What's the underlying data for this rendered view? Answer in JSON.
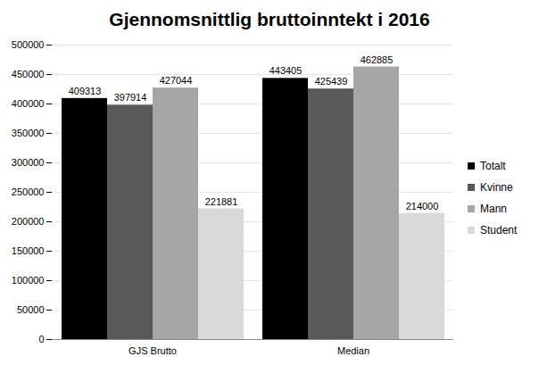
{
  "chart_data": {
    "type": "bar",
    "title": "Gjennomsnittlig bruttoinntekt i 2016",
    "categories": [
      "GJS Brutto",
      "Median"
    ],
    "series": [
      {
        "name": "Totalt",
        "color": "#000000",
        "values": [
          409313,
          443405
        ]
      },
      {
        "name": "Kvinne",
        "color": "#595959",
        "values": [
          397914,
          425439
        ]
      },
      {
        "name": "Mann",
        "color": "#a6a6a6",
        "values": [
          427044,
          462885
        ]
      },
      {
        "name": "Student",
        "color": "#d9d9d9",
        "values": [
          221881,
          214000
        ]
      }
    ],
    "ylim": [
      0,
      500000
    ],
    "yticks": [
      0,
      50000,
      100000,
      150000,
      200000,
      250000,
      300000,
      350000,
      400000,
      450000,
      500000
    ],
    "grid": true,
    "legend": "right",
    "data_labels": true
  }
}
